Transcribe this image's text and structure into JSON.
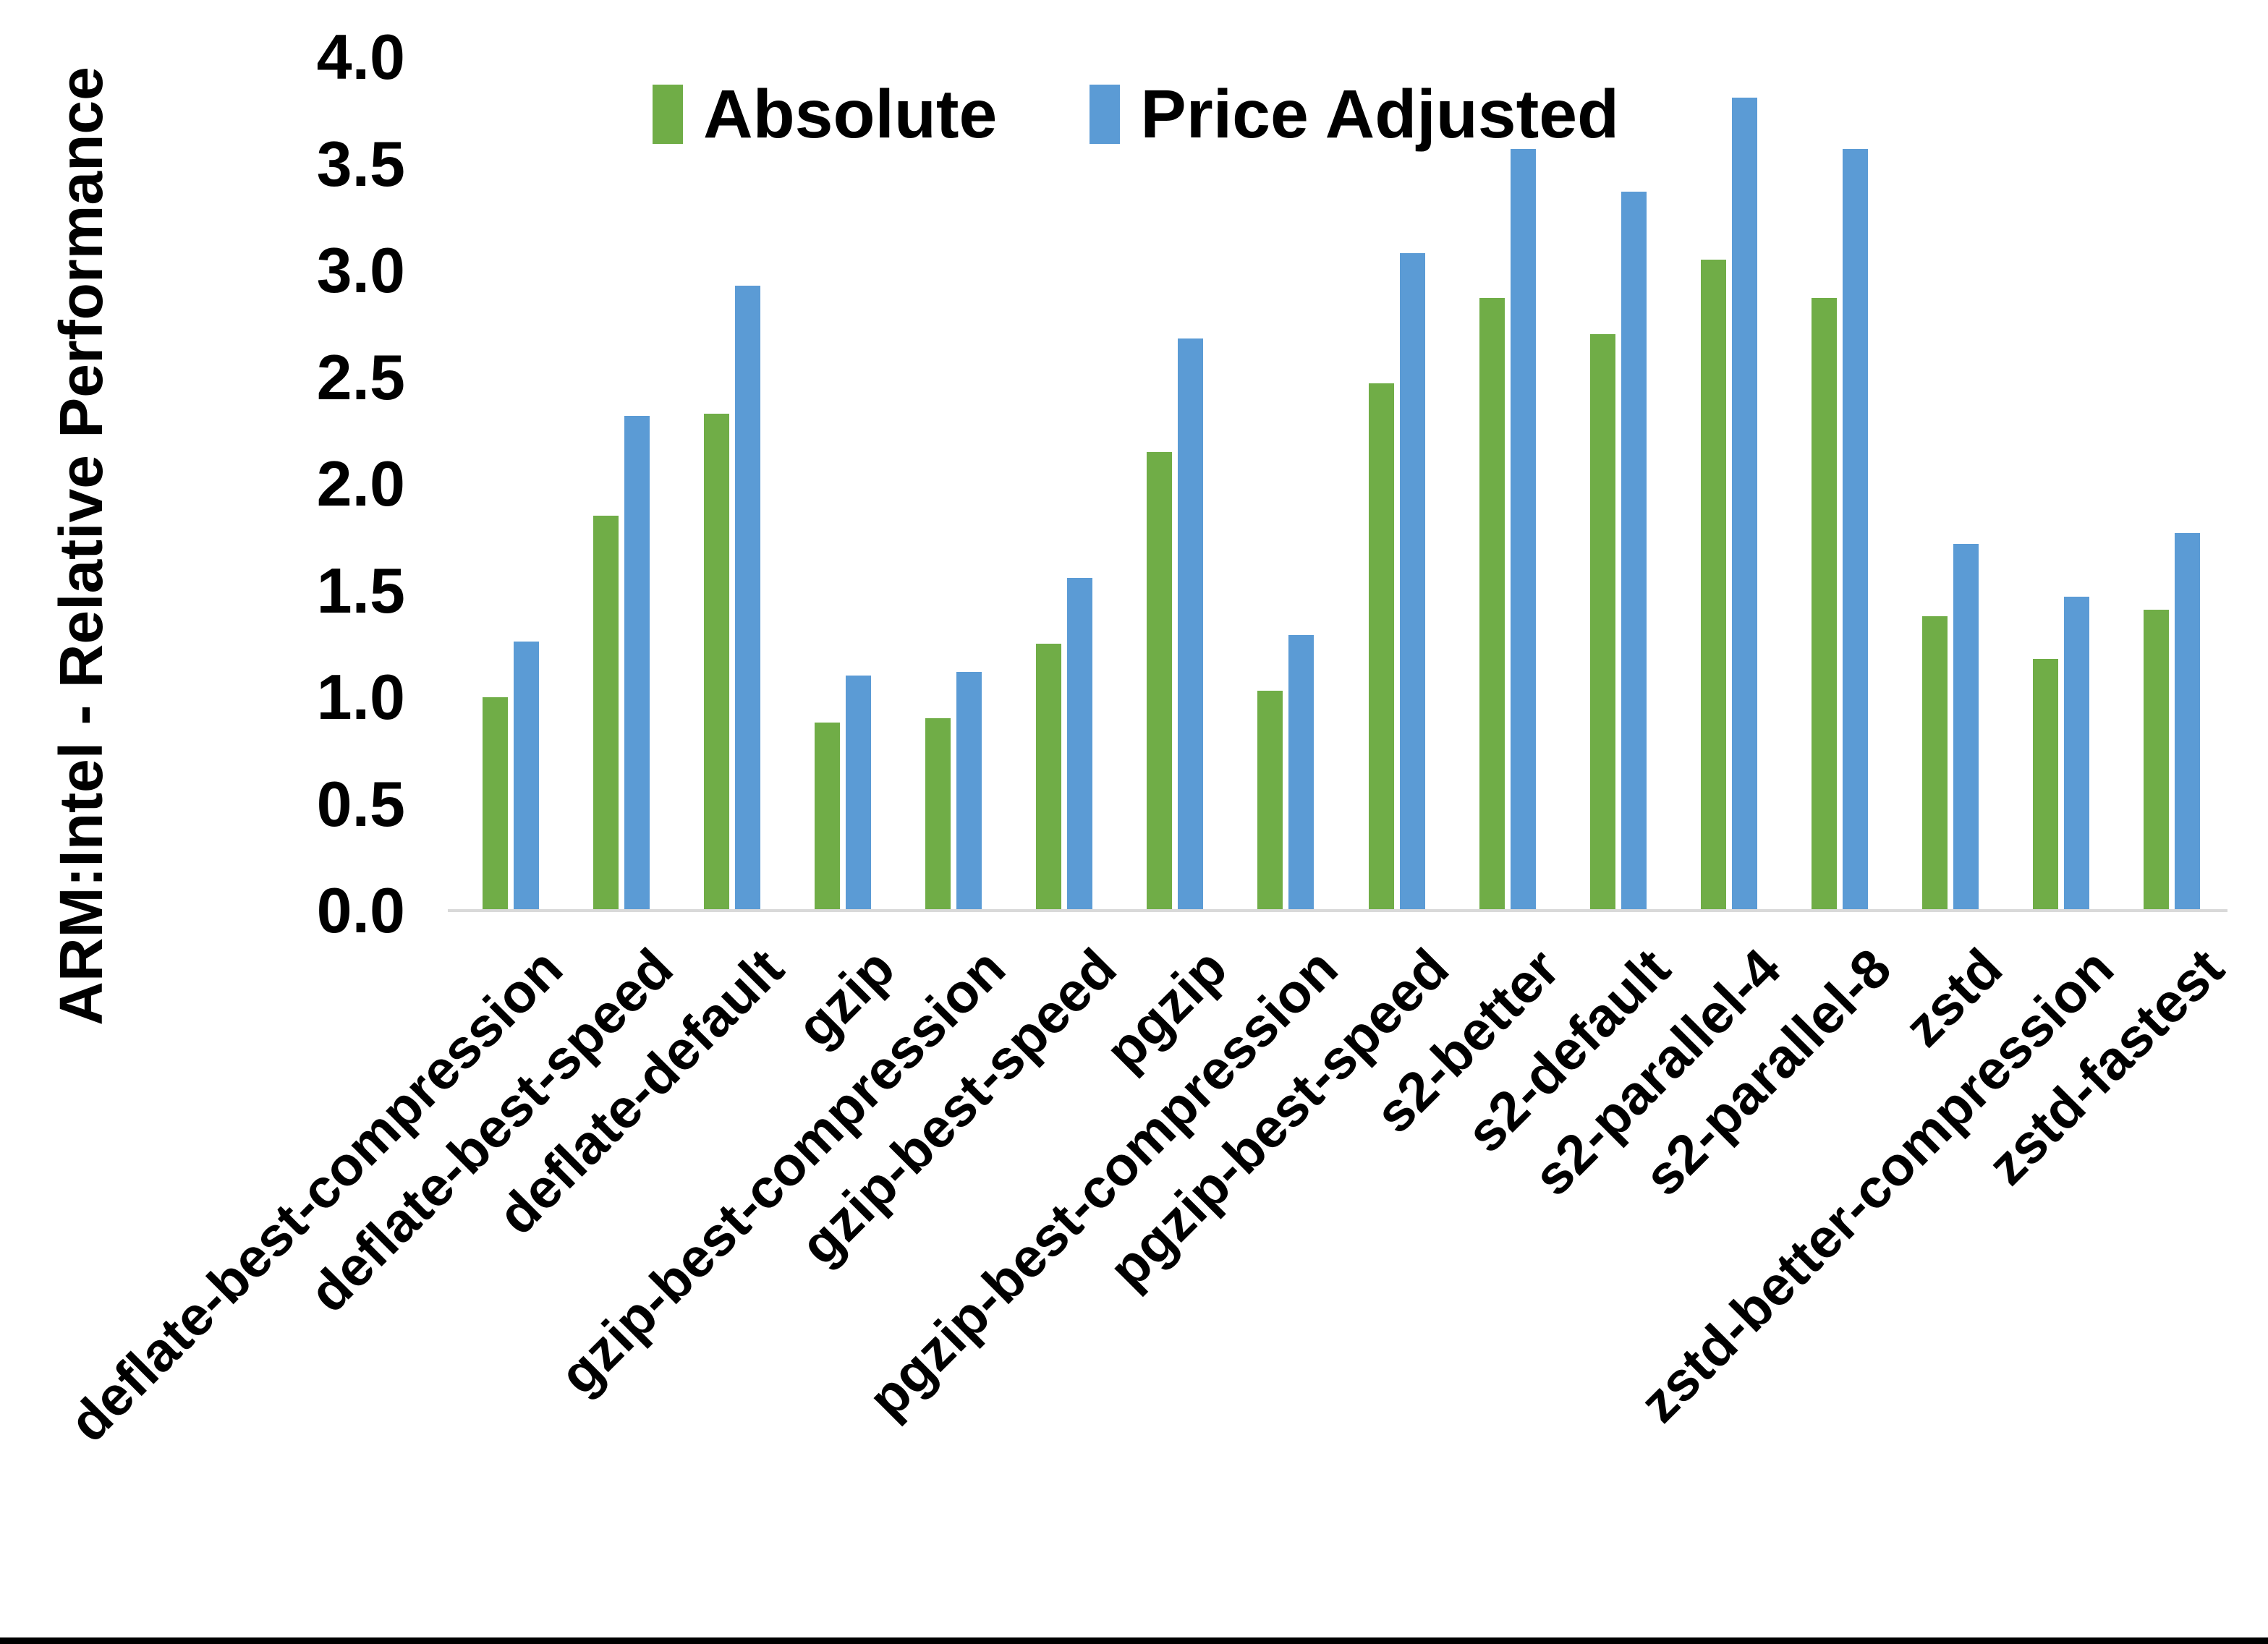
{
  "chart_data": {
    "type": "bar",
    "title": "",
    "xlabel": "",
    "ylabel": "ARM:Intel - Relative Performance",
    "ylim": [
      0.0,
      4.0
    ],
    "grid": false,
    "legend_position": "top",
    "axis_line_color": "#d9d9d9",
    "yticks": [
      {
        "v": 0.0,
        "label": "0.0"
      },
      {
        "v": 0.5,
        "label": "0.5"
      },
      {
        "v": 1.0,
        "label": "1.0"
      },
      {
        "v": 1.5,
        "label": "1.5"
      },
      {
        "v": 2.0,
        "label": "2.0"
      },
      {
        "v": 2.5,
        "label": "2.5"
      },
      {
        "v": 3.0,
        "label": "3.0"
      },
      {
        "v": 3.5,
        "label": "3.5"
      },
      {
        "v": 4.0,
        "label": "4.0"
      }
    ],
    "categories": [
      "deflate-best-compression",
      "deflate-best-speed",
      "deflate-default",
      "gzip",
      "gzip-best-compression",
      "gzip-best-speed",
      "pgzip",
      "pgzip-best-compression",
      "pgzip-best-speed",
      "s2-better",
      "s2-default",
      "s2-parallel-4",
      "s2-parallel-8",
      "zstd",
      "zstd-better-compression",
      "zstd-fastest"
    ],
    "series": [
      {
        "name": "Absolute",
        "color": "#70ad47",
        "values": [
          1.0,
          1.85,
          2.33,
          0.88,
          0.9,
          1.25,
          2.15,
          1.03,
          2.47,
          2.87,
          2.7,
          3.05,
          2.87,
          1.38,
          1.18,
          1.41
        ]
      },
      {
        "name": "Price Adjusted",
        "color": "#5b9bd5",
        "values": [
          1.26,
          2.32,
          2.93,
          1.1,
          1.12,
          1.56,
          2.68,
          1.29,
          3.08,
          3.57,
          3.37,
          3.81,
          3.57,
          1.72,
          1.47,
          1.77
        ]
      }
    ]
  }
}
